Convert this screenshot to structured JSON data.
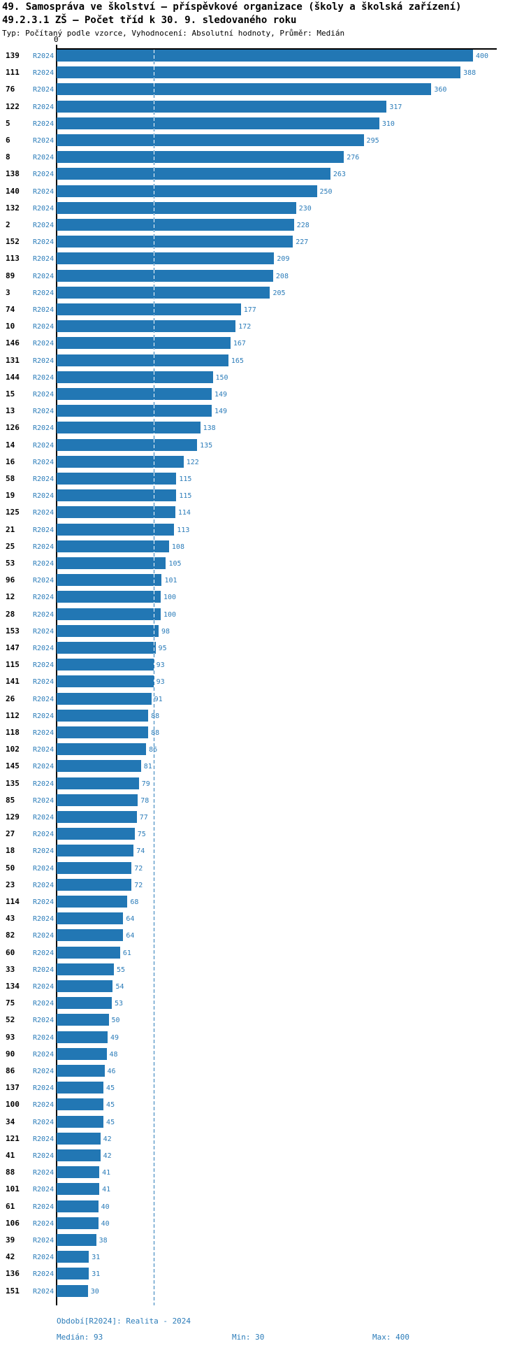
{
  "header": {
    "title_line1": "49. Samospráva ve školství – příspěvkové organizace (školy a školská zařízení)",
    "title_line2": "49.2.3.1 ZŠ – Počet tříd k 30. 9. sledovaného roku",
    "subtitle": "Typ: Počítaný podle vzorce, Vyhodnocení: Absolutní hodnoty, Průměr: Medián"
  },
  "chart_data": {
    "type": "bar",
    "orientation": "horizontal",
    "series_label": "R2024",
    "axis_zero_label": "0",
    "xlim": [
      0,
      400
    ],
    "median": 93,
    "grid": false,
    "categories": [
      "139",
      "111",
      "76",
      "122",
      "5",
      "6",
      "8",
      "138",
      "140",
      "132",
      "2",
      "152",
      "113",
      "89",
      "3",
      "74",
      "10",
      "146",
      "131",
      "144",
      "15",
      "13",
      "126",
      "14",
      "16",
      "58",
      "19",
      "125",
      "21",
      "25",
      "53",
      "96",
      "12",
      "28",
      "153",
      "147",
      "115",
      "141",
      "26",
      "112",
      "118",
      "102",
      "145",
      "135",
      "85",
      "129",
      "27",
      "18",
      "50",
      "23",
      "114",
      "43",
      "82",
      "60",
      "33",
      "134",
      "75",
      "52",
      "93",
      "90",
      "86",
      "137",
      "100",
      "34",
      "121",
      "41",
      "88",
      "101",
      "61",
      "106",
      "39",
      "42",
      "136",
      "151"
    ],
    "values": [
      400,
      388,
      360,
      317,
      310,
      295,
      276,
      263,
      250,
      230,
      228,
      227,
      209,
      208,
      205,
      177,
      172,
      167,
      165,
      150,
      149,
      149,
      138,
      135,
      122,
      115,
      115,
      114,
      113,
      108,
      105,
      101,
      100,
      100,
      98,
      95,
      93,
      93,
      91,
      88,
      88,
      86,
      81,
      79,
      78,
      77,
      75,
      74,
      72,
      72,
      68,
      64,
      64,
      61,
      55,
      54,
      53,
      50,
      49,
      48,
      46,
      45,
      45,
      45,
      42,
      42,
      41,
      41,
      40,
      40,
      38,
      31,
      31,
      30
    ],
    "colors": {
      "bar": "#2277b4",
      "blue_text": "#2b7cb9",
      "axis_black": "#000000",
      "median_line": "#2b7cb9",
      "median_line_on_bar": "#ffffff"
    }
  },
  "footer": {
    "period_label": "Období[R2024]: Realita - 2024",
    "median_label": "Medián: 93",
    "min_label": "Min: 30",
    "max_label": "Max: 400"
  }
}
